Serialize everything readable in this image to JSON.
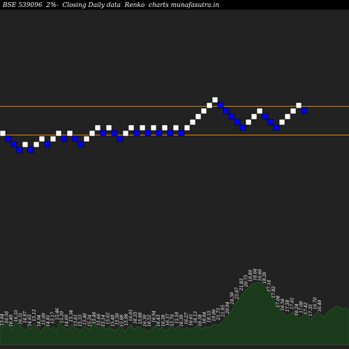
{
  "chart_data": {
    "type": "renko",
    "title": "BSE 539096  2%-  Closing Daily data  Renko  charts munafasutra.in",
    "colors": {
      "background": "#000000",
      "panel": "#222222",
      "up_brick": "#ffffff",
      "down_brick": "#0000ff",
      "reference_line": "#ff9900",
      "volume_fill": "#1b3a1b",
      "volume_line": "#2e5a2e",
      "label": "#ffffff"
    },
    "reference_levels": [
      21.67,
      19.09
    ],
    "bricks": [
      {
        "dir": "up",
        "level": 19
      },
      {
        "dir": "down",
        "level": 18.5
      },
      {
        "dir": "down",
        "level": 18
      },
      {
        "dir": "down",
        "level": 17.5
      },
      {
        "dir": "up",
        "level": 18
      },
      {
        "dir": "down",
        "level": 17.5
      },
      {
        "dir": "up",
        "level": 18
      },
      {
        "dir": "up",
        "level": 18.5
      },
      {
        "dir": "down",
        "level": 18
      },
      {
        "dir": "up",
        "level": 18.5
      },
      {
        "dir": "up",
        "level": 19
      },
      {
        "dir": "down",
        "level": 18.5
      },
      {
        "dir": "up",
        "level": 19
      },
      {
        "dir": "down",
        "level": 18.5
      },
      {
        "dir": "down",
        "level": 18
      },
      {
        "dir": "up",
        "level": 18.5
      },
      {
        "dir": "up",
        "level": 19
      },
      {
        "dir": "up",
        "level": 19.5
      },
      {
        "dir": "down",
        "level": 19
      },
      {
        "dir": "up",
        "level": 19.5
      },
      {
        "dir": "down",
        "level": 19
      },
      {
        "dir": "down",
        "level": 18.5
      },
      {
        "dir": "up",
        "level": 19
      },
      {
        "dir": "up",
        "level": 19.5
      },
      {
        "dir": "down",
        "level": 19
      },
      {
        "dir": "up",
        "level": 19.5
      },
      {
        "dir": "down",
        "level": 19
      },
      {
        "dir": "up",
        "level": 19.5
      },
      {
        "dir": "down",
        "level": 19
      },
      {
        "dir": "up",
        "level": 19.5
      },
      {
        "dir": "down",
        "level": 19
      },
      {
        "dir": "up",
        "level": 19.5
      },
      {
        "dir": "down",
        "level": 19
      },
      {
        "dir": "up",
        "level": 19.5
      },
      {
        "dir": "up",
        "level": 20
      },
      {
        "dir": "up",
        "level": 20.5
      },
      {
        "dir": "up",
        "level": 21
      },
      {
        "dir": "up",
        "level": 21.5
      },
      {
        "dir": "up",
        "level": 22
      },
      {
        "dir": "down",
        "level": 21.5
      },
      {
        "dir": "down",
        "level": 21
      },
      {
        "dir": "down",
        "level": 20.5
      },
      {
        "dir": "down",
        "level": 20
      },
      {
        "dir": "down",
        "level": 19.5
      },
      {
        "dir": "up",
        "level": 20
      },
      {
        "dir": "up",
        "level": 20.5
      },
      {
        "dir": "up",
        "level": 21
      },
      {
        "dir": "down",
        "level": 20.5
      },
      {
        "dir": "down",
        "level": 20
      },
      {
        "dir": "down",
        "level": 19.5
      },
      {
        "dir": "up",
        "level": 20
      },
      {
        "dir": "up",
        "level": 20.5
      },
      {
        "dir": "up",
        "level": 21
      },
      {
        "dir": "up",
        "level": 21.5
      },
      {
        "dir": "down",
        "level": 21
      }
    ],
    "volume_labels": [
      "15.64",
      "16.56",
      "16.40",
      "16.33",
      "16.31",
      "14.97",
      "14.65",
      "15.13",
      "14.94",
      "15.00",
      "14.81",
      "15.17",
      "15.46",
      "15.20",
      "14.69",
      "15.34",
      "15.61",
      "15.33",
      "15.46",
      "15.24",
      "15.46",
      "15.66",
      "15.14",
      "15.62",
      "15.48",
      "15.50",
      "15.88",
      "15.90",
      "16.01",
      "16.35",
      "15.88",
      "16.30",
      "16.52",
      "16.94",
      "16.43",
      "16.38",
      "16.37",
      "15.79",
      "15.59",
      "16.30",
      "16.27",
      "16.61",
      "16.13",
      "16.58",
      "16.94",
      "18.15",
      "19.06",
      "21.73",
      "21.95",
      "20.94",
      "24.30",
      "23.67",
      "21.83",
      "20.75",
      "19.89",
      "18.04",
      "16.60",
      "18.26",
      "17.14",
      "17.82",
      "17.08",
      "16.54",
      "17.58",
      "17.61",
      "16.24",
      "17.00",
      "17.42",
      "17.35",
      "16.70",
      "16.40"
    ],
    "volume_profile": [
      0.34,
      0.26,
      0.38,
      0.3,
      0.24,
      0.36,
      0.32,
      0.28,
      0.22,
      0.3,
      0.25,
      0.33,
      0.28,
      0.2,
      0.27,
      0.31,
      0.24,
      0.29,
      0.21,
      0.35,
      0.3,
      0.26,
      0.23,
      0.32,
      0.28,
      0.25,
      0.22,
      0.3,
      0.27,
      0.24,
      0.36,
      0.29,
      0.26,
      0.31,
      0.23,
      0.28,
      0.25,
      0.22,
      0.27,
      0.3,
      0.21,
      0.26,
      0.33,
      0.24,
      0.29,
      0.28,
      0.25,
      0.23,
      0.2,
      0.27,
      0.31,
      0.24,
      0.28,
      0.22,
      0.26,
      0.3,
      0.25,
      0.29,
      0.27,
      0.23,
      0.28,
      0.24,
      0.26,
      0.3,
      0.28,
      0.25,
      0.29,
      0.27,
      0.31,
      0.33,
      0.3,
      0.35,
      0.4,
      0.45,
      0.52,
      0.6,
      0.68,
      0.75,
      0.82,
      0.88,
      0.92,
      0.96,
      0.98,
      1.0,
      0.97,
      0.93,
      0.88,
      0.8,
      0.7,
      0.62,
      0.55,
      0.5,
      0.45,
      0.48,
      0.52,
      0.47,
      0.42,
      0.46,
      0.5,
      0.44,
      0.41,
      0.47,
      0.52,
      0.48,
      0.44,
      0.5,
      0.55,
      0.58,
      0.62,
      0.6,
      0.57,
      0.59,
      0.55
    ]
  }
}
